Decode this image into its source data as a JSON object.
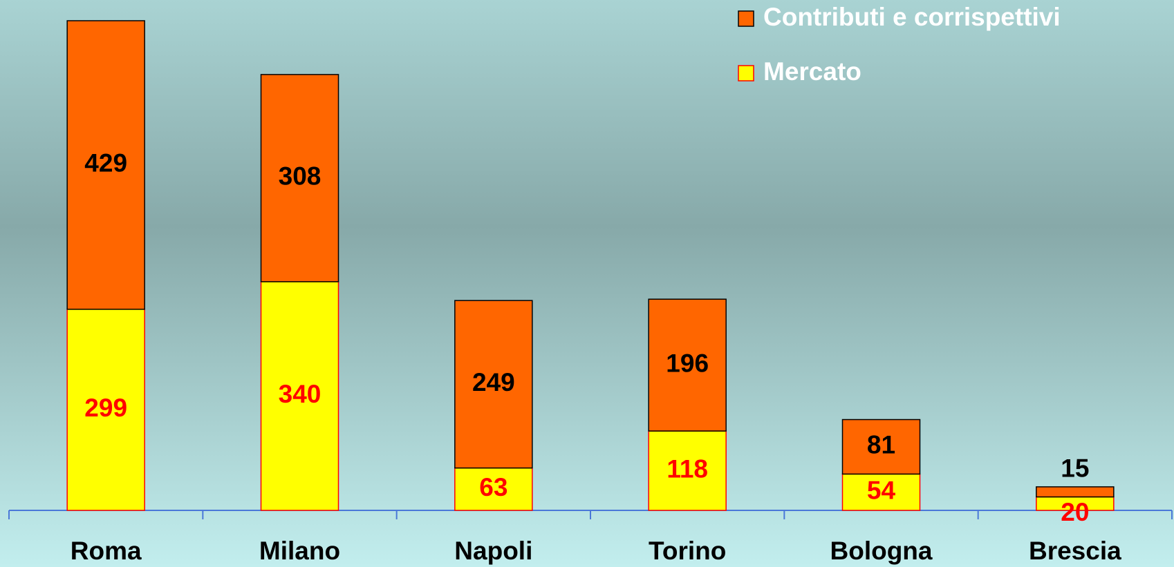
{
  "chart_data": {
    "type": "stacked_bar",
    "categories": [
      "Roma",
      "Milano",
      "Napoli",
      "Torino",
      "Bologna",
      "Brescia"
    ],
    "series": [
      {
        "name": "Mercato",
        "color": "#ffff00",
        "values": [
          299,
          340,
          63,
          118,
          54,
          20
        ]
      },
      {
        "name": "Contributi e corrispettivi",
        "color": "#ff6600",
        "values": [
          429,
          308,
          249,
          196,
          81,
          15
        ]
      }
    ],
    "legend": "top-right"
  }
}
